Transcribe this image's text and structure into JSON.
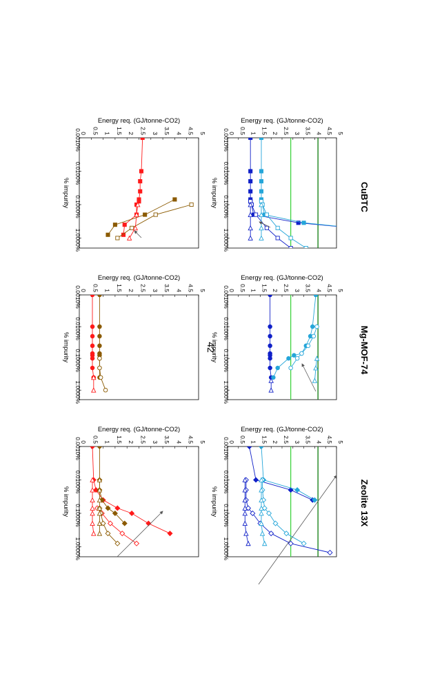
{
  "page": {
    "number": "42"
  },
  "materials": [
    "CuBTC",
    "Mg-MOF-74",
    "Zeolite 13X"
  ],
  "colors": {
    "dark_blue": "#1020c8",
    "light_blue": "#25a6d9",
    "dark_red": "#c00000",
    "bright_red": "#ff1a1a",
    "brown": "#8b5a00",
    "light_green": "#3fd33f",
    "dark_green": "#0b7a0b"
  },
  "chart_data": [
    {
      "id": "cubtc-blue",
      "type": "line",
      "xlabel": "% impurity",
      "ylabel": "Energy req. (GJ/tonne-CO2)",
      "xscale": "log",
      "xlim": [
        0.0001,
        0.02
      ],
      "ylim": [
        0,
        5
      ],
      "xticks": [
        "0.0010%",
        "0.0100%",
        "0.1000%",
        "1.0000%"
      ],
      "xtick_values": [
        1e-05,
        0.0001,
        0.001,
        0.01
      ],
      "yticks": [
        "0",
        "0.5",
        "1",
        "1.5",
        "2",
        "2.5",
        "3",
        "3.5",
        "4",
        "4.5",
        "5"
      ],
      "hlines": [
        {
          "y": 2.9,
          "color": "#3fd33f"
        },
        {
          "y": 4.15,
          "color": "#0b7a0b"
        }
      ],
      "series": [
        {
          "color": "#1020c8",
          "marker": "square",
          "filled": true,
          "x": [
            1e-05,
            0.0001,
            0.0002,
            0.0004,
            0.0007,
            0.0008,
            0.001,
            0.002,
            0.0035
          ],
          "y": [
            1.05,
            1.05,
            1.05,
            1.05,
            1.05,
            1.05,
            1.1,
            1.2,
            3.25
          ],
          "curve": "steep"
        },
        {
          "color": "#25a6d9",
          "marker": "square",
          "filled": true,
          "x": [
            1e-05,
            0.0001,
            0.0002,
            0.0004,
            0.0007,
            0.0008,
            0.001,
            0.002,
            0.0035
          ],
          "y": [
            1.55,
            1.55,
            1.55,
            1.55,
            1.55,
            1.55,
            1.6,
            1.7,
            3.5
          ],
          "curve": "steep"
        },
        {
          "color": "#1020c8",
          "marker": "square",
          "filled": false,
          "x": [
            0.0008,
            0.001,
            0.002,
            0.005,
            0.01,
            0.02
          ],
          "y": [
            1.05,
            1.1,
            1.3,
            1.8,
            2.3,
            2.9
          ]
        },
        {
          "color": "#25a6d9",
          "marker": "square",
          "filled": false,
          "x": [
            0.0008,
            0.001,
            0.002,
            0.005,
            0.01,
            0.02
          ],
          "y": [
            1.55,
            1.6,
            1.8,
            2.3,
            2.9,
            3.6
          ]
        },
        {
          "color": "#1020c8",
          "marker": "triangle",
          "filled": false,
          "x": [
            0.001,
            0.002,
            0.005,
            0.01
          ],
          "y": [
            1.05,
            1.05,
            1.05,
            1.05
          ]
        },
        {
          "color": "#25a6d9",
          "marker": "triangle",
          "filled": false,
          "x": [
            0.001,
            0.002,
            0.005,
            0.01
          ],
          "y": [
            1.55,
            1.55,
            1.55,
            1.55
          ]
        }
      ]
    },
    {
      "id": "cubtc-red",
      "type": "line",
      "xlabel": "% impurity",
      "ylabel": "Energy req. (GJ/tonne-CO2)",
      "xscale": "log",
      "xlim": [
        0.0001,
        0.02
      ],
      "ylim": [
        0,
        5
      ],
      "xticks": [
        "0.0010%",
        "0.0100%",
        "0.1000%",
        "1.0000%"
      ],
      "xtick_values": [
        1e-05,
        0.0001,
        0.001,
        0.01
      ],
      "yticks": [
        "0",
        "0.5",
        "1",
        "1.5",
        "2",
        "2.5",
        "3",
        "3.5",
        "4",
        "4.5",
        "5"
      ],
      "hlines": [],
      "series": [
        {
          "color": "#ff1a1a",
          "marker": "square",
          "filled": true,
          "x": [
            1e-05,
            0.0001,
            0.0002,
            0.0004,
            0.0007,
            0.0008,
            0.001,
            0.002,
            0.004,
            0.008
          ],
          "y": [
            2.65,
            2.6,
            2.55,
            2.55,
            2.5,
            2.5,
            2.4,
            2.4,
            1.9,
            1.85
          ]
        },
        {
          "color": "#8b5a00",
          "marker": "square",
          "filled": true,
          "x": [
            0.0007,
            0.002,
            0.004,
            0.008
          ],
          "y": [
            4.0,
            2.75,
            1.5,
            1.2
          ]
        },
        {
          "color": "#8b5a00",
          "marker": "square",
          "filled": false,
          "x": [
            0.001,
            0.002,
            0.005,
            0.01
          ],
          "y": [
            4.7,
            3.2,
            2.2,
            1.6
          ]
        },
        {
          "color": "#ff1a1a",
          "marker": "triangle",
          "filled": false,
          "x": [
            0.001,
            0.002,
            0.005,
            0.01
          ],
          "y": [
            2.45,
            2.4,
            2.35,
            2.1
          ]
        }
      ]
    },
    {
      "id": "mgmof-blue",
      "type": "line",
      "xlabel": "% impurity",
      "ylabel": "Energy req. (GJ/tonne-CO2)",
      "xscale": "log",
      "xlim": [
        0.0001,
        0.02
      ],
      "ylim": [
        0,
        5
      ],
      "xticks": [
        "0.0010%",
        "0.0100%",
        "0.1000%",
        "1.0000%"
      ],
      "xtick_values": [
        1e-05,
        0.0001,
        0.001,
        0.01
      ],
      "yticks": [
        "0",
        "0.5",
        "1",
        "1.5",
        "2",
        "2.5",
        "3",
        "3.5",
        "4",
        "4.5",
        "5"
      ],
      "hlines": [
        {
          "y": 2.9,
          "color": "#3fd33f"
        },
        {
          "y": 4.15,
          "color": "#0b7a0b"
        }
      ],
      "series": [
        {
          "color": "#1020c8",
          "marker": "circle",
          "filled": true,
          "x": [
            1e-05,
            0.0001,
            0.0002,
            0.0004,
            0.0007,
            0.0008,
            0.001,
            0.002,
            0.004
          ],
          "y": [
            1.95,
            1.95,
            1.95,
            1.95,
            1.95,
            1.95,
            1.95,
            1.95,
            2.0
          ]
        },
        {
          "color": "#25a6d9",
          "marker": "circle",
          "filled": true,
          "x": [
            1e-05,
            0.0001,
            0.0002,
            0.0004,
            0.0007,
            0.0008,
            0.001,
            0.002,
            0.004
          ],
          "y": [
            4.05,
            3.9,
            3.8,
            3.6,
            3.4,
            3.05,
            2.8,
            2.3,
            2.1
          ]
        },
        {
          "color": "#25a6d9",
          "marker": "circle",
          "filled": false,
          "x": [
            0.0001,
            0.0002,
            0.0004,
            0.0007,
            0.001,
            0.002
          ],
          "y": [
            4.1,
            3.95,
            3.7,
            3.4,
            3.2,
            2.9
          ]
        },
        {
          "color": "#25a6d9",
          "marker": "triangle",
          "filled": false,
          "x": [
            0.001,
            0.002,
            0.005
          ],
          "y": [
            4.1,
            4.05,
            4.0
          ]
        },
        {
          "color": "#1020c8",
          "marker": "triangle",
          "filled": false,
          "x": [
            0.005,
            0.01
          ],
          "y": [
            2.0,
            2.0
          ]
        }
      ]
    },
    {
      "id": "mgmof-red",
      "type": "line",
      "xlabel": "% impurity",
      "ylabel": "Energy req. (GJ/tonne-CO2)",
      "xscale": "log",
      "xlim": [
        0.0001,
        0.02
      ],
      "ylim": [
        0,
        5
      ],
      "xticks": [
        "0.0010%",
        "0.0100%",
        "0.1000%",
        "1.0000%"
      ],
      "xtick_values": [
        1e-05,
        0.0001,
        0.001,
        0.01
      ],
      "yticks": [
        "0",
        "0.5",
        "1",
        "1.5",
        "2",
        "2.5",
        "3",
        "3.5",
        "4",
        "4.5",
        "5"
      ],
      "hlines": [],
      "series": [
        {
          "color": "#ff1a1a",
          "marker": "circle",
          "filled": true,
          "x": [
            1e-05,
            0.0001,
            0.0002,
            0.0004,
            0.0007,
            0.0008,
            0.001,
            0.002,
            0.004
          ],
          "y": [
            0.55,
            0.55,
            0.55,
            0.55,
            0.55,
            0.55,
            0.55,
            0.55,
            0.6
          ]
        },
        {
          "color": "#8b5a00",
          "marker": "circle",
          "filled": true,
          "x": [
            1e-05,
            0.0001,
            0.0002,
            0.0004,
            0.0007,
            0.0008,
            0.001,
            0.002,
            0.004
          ],
          "y": [
            0.85,
            0.85,
            0.85,
            0.85,
            0.85,
            0.85,
            0.85,
            0.85,
            0.85
          ]
        },
        {
          "color": "#8b5a00",
          "marker": "circle",
          "filled": false,
          "x": [
            0.001,
            0.002,
            0.004,
            0.01
          ],
          "y": [
            0.85,
            0.85,
            0.9,
            1.1
          ]
        },
        {
          "color": "#ff1a1a",
          "marker": "triangle",
          "filled": false,
          "x": [
            0.004,
            0.01
          ],
          "y": [
            0.6,
            0.6
          ]
        }
      ]
    },
    {
      "id": "zeolite-blue",
      "type": "line",
      "xlabel": "% impurity",
      "ylabel": "Energy req. (GJ/tonne-CO2)",
      "xscale": "log",
      "xlim": [
        0.0001,
        0.02
      ],
      "ylim": [
        0,
        5
      ],
      "xticks": [
        "0.0010%",
        "0.0100%",
        "0.1000%",
        "1.0000%"
      ],
      "xtick_values": [
        1e-05,
        0.0001,
        0.001,
        0.01
      ],
      "yticks": [
        "0",
        "0.5",
        "1",
        "1.5",
        "2",
        "2.5",
        "3",
        "3.5",
        "4",
        "4.5",
        "5"
      ],
      "hlines": [
        {
          "y": 2.9,
          "color": "#3fd33f"
        },
        {
          "y": 4.15,
          "color": "#0b7a0b"
        }
      ],
      "series": [
        {
          "color": "#1020c8",
          "marker": "diamond",
          "filled": true,
          "x": [
            1e-05,
            0.0001,
            0.0002,
            0.0004
          ],
          "y": [
            1.0,
            1.3,
            2.9,
            3.9
          ]
        },
        {
          "color": "#25a6d9",
          "marker": "diamond",
          "filled": true,
          "x": [
            1e-05,
            0.0001,
            0.0002,
            0.0004
          ],
          "y": [
            1.55,
            1.65,
            3.2,
            4.0
          ]
        },
        {
          "color": "#1020c8",
          "marker": "diamond",
          "filled": false,
          "x": [
            0.0001,
            0.0002,
            0.0004,
            0.0007,
            0.001,
            0.002,
            0.004,
            0.008,
            0.015
          ],
          "y": [
            0.85,
            0.85,
            0.85,
            0.95,
            1.15,
            1.5,
            2.0,
            2.9,
            4.7
          ]
        },
        {
          "color": "#25a6d9",
          "marker": "diamond",
          "filled": false,
          "x": [
            0.0001,
            0.0002,
            0.0004,
            0.0007,
            0.001,
            0.002,
            0.004,
            0.008
          ],
          "y": [
            1.6,
            1.6,
            1.65,
            1.7,
            1.9,
            2.2,
            2.7,
            3.5
          ]
        },
        {
          "color": "#1020c8",
          "marker": "triangle",
          "filled": false,
          "x": [
            0.0001,
            0.0002,
            0.0004,
            0.0007,
            0.001,
            0.002,
            0.004,
            0.008
          ],
          "y": [
            0.8,
            0.8,
            0.8,
            0.8,
            0.8,
            0.8,
            0.85,
            0.95
          ]
        },
        {
          "color": "#25a6d9",
          "marker": "triangle",
          "filled": false,
          "x": [
            0.0001,
            0.0002,
            0.0004,
            0.0007,
            0.001,
            0.002,
            0.004,
            0.008
          ],
          "y": [
            1.55,
            1.55,
            1.55,
            1.55,
            1.55,
            1.55,
            1.6,
            1.7
          ]
        }
      ]
    },
    {
      "id": "zeolite-red",
      "type": "line",
      "xlabel": "% impurity",
      "ylabel": "Energy req. (GJ/tonne-CO2)",
      "xscale": "log",
      "xlim": [
        0.0001,
        0.02
      ],
      "ylim": [
        0,
        5
      ],
      "xticks": [
        "0.0010%",
        "0.0100%",
        "0.1000%",
        "1.0000%"
      ],
      "xtick_values": [
        1e-05,
        0.0001,
        0.001,
        0.01
      ],
      "yticks": [
        "0",
        "0.5",
        "1",
        "1.5",
        "2",
        "2.5",
        "3",
        "3.5",
        "4",
        "4.5",
        "5"
      ],
      "hlines": [],
      "series": [
        {
          "color": "#ff1a1a",
          "marker": "diamond",
          "filled": true,
          "x": [
            1e-05,
            0.0001,
            0.0002,
            0.0004,
            0.0007,
            0.001,
            0.002,
            0.004
          ],
          "y": [
            0.55,
            0.6,
            0.7,
            1.0,
            1.6,
            2.2,
            2.9,
            3.8
          ]
        },
        {
          "color": "#8b5a00",
          "marker": "diamond",
          "filled": true,
          "x": [
            1e-05,
            0.0001,
            0.0002,
            0.0004,
            0.0007,
            0.001,
            0.002
          ],
          "y": [
            0.85,
            0.85,
            0.85,
            0.95,
            1.2,
            1.5,
            1.9
          ]
        },
        {
          "color": "#ff1a1a",
          "marker": "diamond",
          "filled": false,
          "x": [
            0.0007,
            0.001,
            0.002,
            0.004,
            0.008
          ],
          "y": [
            0.75,
            0.95,
            1.3,
            1.8,
            2.4
          ]
        },
        {
          "color": "#8b5a00",
          "marker": "diamond",
          "filled": false,
          "x": [
            0.0007,
            0.001,
            0.002,
            0.004,
            0.008
          ],
          "y": [
            0.85,
            0.9,
            1.0,
            1.2,
            1.6
          ]
        },
        {
          "color": "#ff1a1a",
          "marker": "triangle",
          "filled": false,
          "x": [
            0.0001,
            0.0002,
            0.0004,
            0.0007,
            0.001,
            0.002,
            0.004
          ],
          "y": [
            0.55,
            0.55,
            0.55,
            0.55,
            0.55,
            0.55,
            0.6
          ]
        },
        {
          "color": "#8b5a00",
          "marker": "triangle",
          "filled": false,
          "x": [
            0.0001,
            0.0002,
            0.0004,
            0.0007,
            0.001,
            0.002,
            0.004
          ],
          "y": [
            0.85,
            0.85,
            0.85,
            0.85,
            0.85,
            0.85,
            0.85
          ]
        }
      ]
    }
  ]
}
